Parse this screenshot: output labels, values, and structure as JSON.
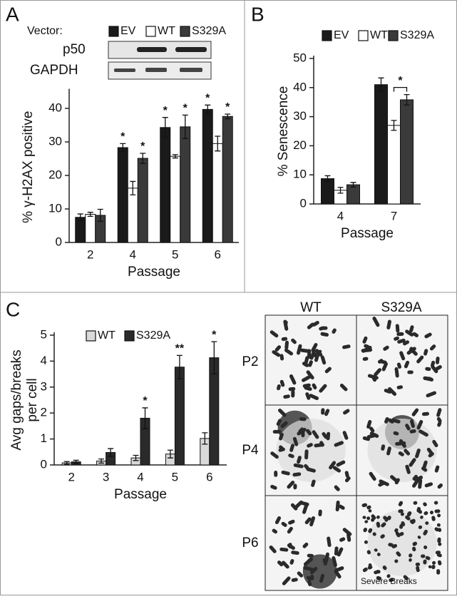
{
  "panels": [
    "A",
    "B",
    "C"
  ],
  "blot": {
    "vector_label": "Vector:",
    "rows": [
      "p50",
      "GAPDH"
    ]
  },
  "micrographs": {
    "columns": [
      "WT",
      "S329A"
    ],
    "rows": [
      "P2",
      "P4",
      "P6"
    ],
    "annotation": "Severe Breaks"
  },
  "chart_data": [
    {
      "type": "bar",
      "xlabel": "Passage",
      "ylabel": "% γ-H2AX positive",
      "categories": [
        "2",
        "4",
        "5",
        "6"
      ],
      "series": [
        {
          "name": "EV",
          "color": "#1a1a1a",
          "values": [
            7.5,
            28.3,
            34.3,
            39.7
          ],
          "errors": [
            1.0,
            1.2,
            3.0,
            1.3
          ],
          "significance": [
            null,
            "*",
            "*",
            "*"
          ]
        },
        {
          "name": "WT",
          "color": "#ffffff",
          "values": [
            8.4,
            16.2,
            25.7,
            29.5
          ],
          "errors": [
            0.6,
            2.0,
            0.5,
            2.2
          ],
          "significance": [
            null,
            null,
            null,
            null
          ]
        },
        {
          "name": "S329A",
          "color": "#3a3a3a",
          "values": [
            8.1,
            25.1,
            34.5,
            37.6
          ],
          "errors": [
            1.8,
            1.5,
            3.5,
            0.7
          ],
          "significance": [
            null,
            "*",
            "*",
            "*"
          ]
        }
      ],
      "ylim": [
        0,
        45
      ],
      "yticks": [
        0,
        10,
        20,
        30,
        40
      ]
    },
    {
      "type": "bar",
      "xlabel": "Passage",
      "ylabel": "% Senescence",
      "categories": [
        "4",
        "7"
      ],
      "series": [
        {
          "name": "EV",
          "color": "#1a1a1a",
          "values": [
            8.7,
            41.0
          ],
          "errors": [
            1.0,
            2.3
          ]
        },
        {
          "name": "WT",
          "color": "#ffffff",
          "values": [
            4.7,
            27.0
          ],
          "errors": [
            1.0,
            1.7
          ]
        },
        {
          "name": "S329A",
          "color": "#3a3a3a",
          "values": [
            6.6,
            35.8
          ],
          "errors": [
            0.8,
            1.8
          ]
        }
      ],
      "bracket": {
        "text": "*"
      },
      "ylim": [
        0,
        50
      ],
      "yticks": [
        0,
        10,
        20,
        30,
        40,
        50
      ]
    },
    {
      "type": "bar",
      "xlabel": "Passage",
      "ylabel": [
        "Avg gaps/breaks",
        "per cell"
      ],
      "categories": [
        "2",
        "3",
        "4",
        "5",
        "6"
      ],
      "series": [
        {
          "name": "WT",
          "color": "#d9d9d9",
          "values": [
            0.08,
            0.15,
            0.27,
            0.42,
            1.02
          ],
          "errors": [
            0.05,
            0.08,
            0.1,
            0.15,
            0.22
          ],
          "significance": [
            null,
            null,
            null,
            null,
            null
          ]
        },
        {
          "name": "S329A",
          "color": "#2a2a2a",
          "values": [
            0.12,
            0.48,
            1.8,
            3.77,
            4.13
          ],
          "errors": [
            0.06,
            0.15,
            0.4,
            0.45,
            0.62
          ],
          "significance": [
            null,
            null,
            "*",
            "**",
            "*"
          ]
        }
      ],
      "ylim": [
        0,
        5
      ],
      "yticks": [
        0,
        1,
        2,
        3,
        4,
        5
      ]
    }
  ]
}
